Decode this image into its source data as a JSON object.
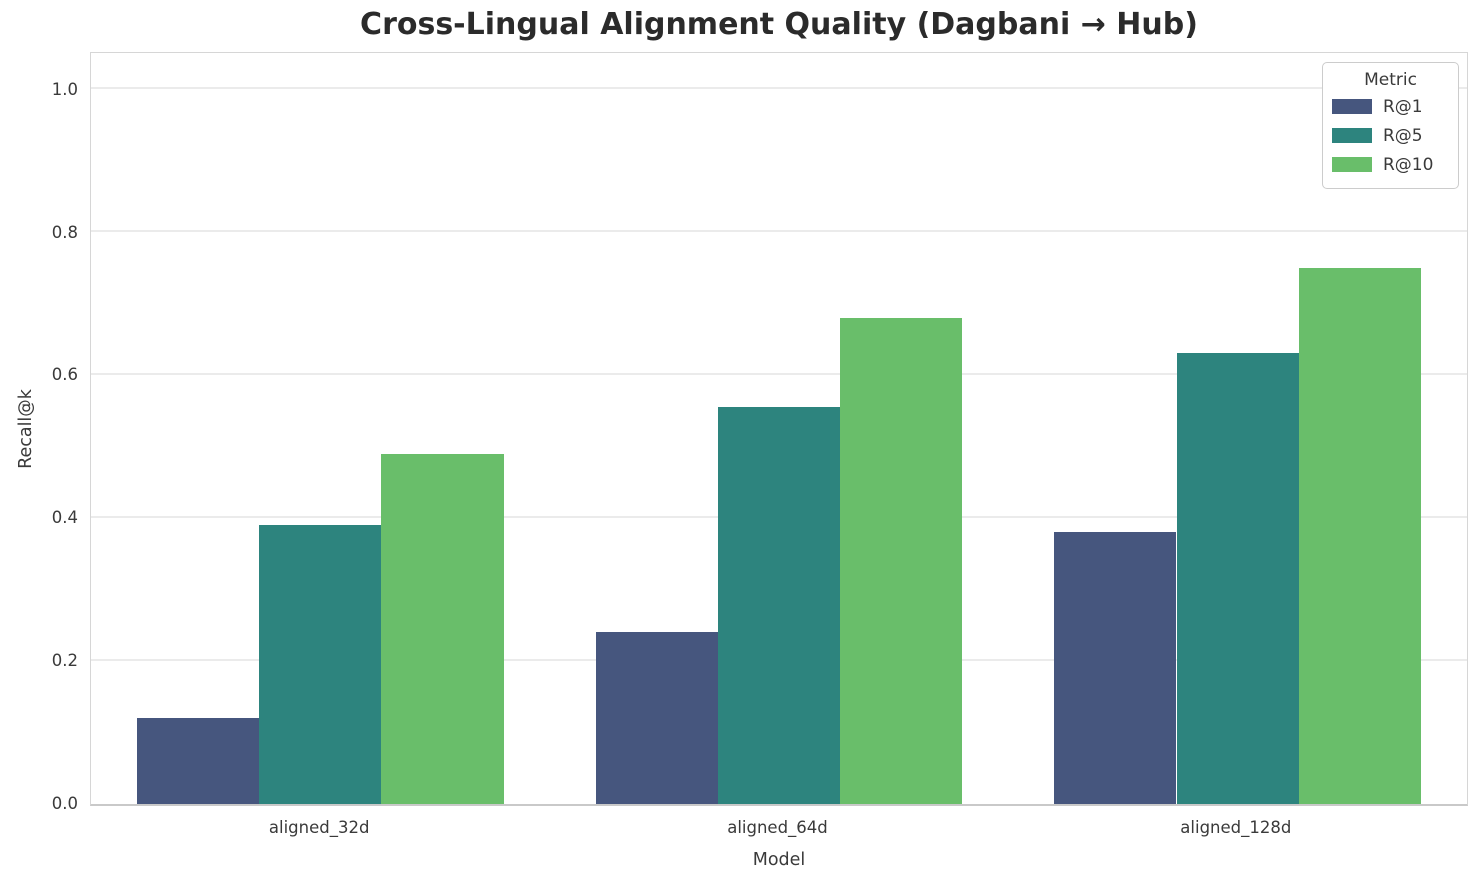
{
  "chart_data": {
    "type": "bar",
    "title": "Cross-Lingual Alignment Quality (Dagbani → Hub)",
    "xlabel": "Model",
    "ylabel": "Recall@k",
    "categories": [
      "aligned_32d",
      "aligned_64d",
      "aligned_128d"
    ],
    "series": [
      {
        "name": "R@1",
        "color": "#46567E",
        "values": [
          0.12,
          0.24,
          0.38
        ]
      },
      {
        "name": "R@5",
        "color": "#2D847E",
        "values": [
          0.39,
          0.555,
          0.63
        ]
      },
      {
        "name": "R@10",
        "color": "#69BE6A",
        "values": [
          0.49,
          0.68,
          0.75
        ]
      }
    ],
    "ylim": [
      0,
      1.05
    ],
    "yticks": [
      0.0,
      0.2,
      0.4,
      0.6,
      0.8,
      1.0
    ],
    "grid": "horizontal",
    "legend": {
      "title": "Metric",
      "position": "upper right"
    },
    "bar_group_width_fraction": 0.8
  }
}
